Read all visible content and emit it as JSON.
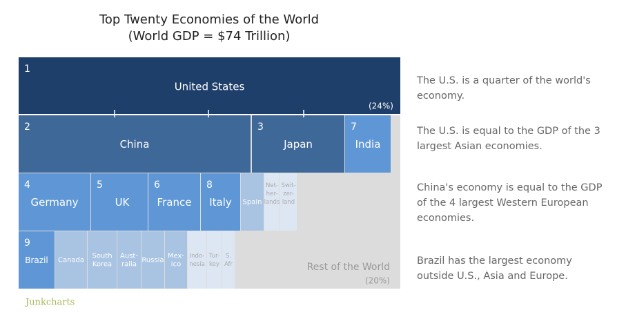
{
  "title": "Top Twenty Economies of the World",
  "subtitle": "(World GDP = $74 Trillion)",
  "blocks": [
    {
      "rank": 1,
      "label": "United States",
      "note": "(24%)"
    },
    {
      "rank": 2,
      "label": "China"
    },
    {
      "rank": 3,
      "label": "Japan"
    },
    {
      "rank": 7,
      "label": "India"
    },
    {
      "rank": 4,
      "label": "Germany"
    },
    {
      "rank": 5,
      "label": "UK"
    },
    {
      "rank": 6,
      "label": "France"
    },
    {
      "rank": 8,
      "label": "Italy"
    },
    {
      "lines": [
        "Spain"
      ]
    },
    {
      "lines": [
        "Net-",
        "her-",
        "lands"
      ]
    },
    {
      "lines": [
        "Swit-",
        "zer-",
        "land"
      ]
    },
    {
      "rank": 9,
      "label": "Brazil"
    },
    {
      "lines": [
        "Canada"
      ]
    },
    {
      "lines": [
        "South",
        "Korea"
      ]
    },
    {
      "lines": [
        "Aust-",
        "ralia"
      ]
    },
    {
      "lines": [
        "Russia"
      ]
    },
    {
      "lines": [
        "Mex-",
        "ico"
      ]
    },
    {
      "lines": [
        "Indo-",
        "nesia"
      ]
    },
    {
      "lines": [
        "Tur-",
        "key"
      ]
    },
    {
      "lines": [
        "S.",
        "Afr"
      ]
    }
  ],
  "rest": {
    "label": "Rest of the World",
    "note": "(20%)"
  },
  "annotations": [
    [
      "The U.S. is a quarter of the world's",
      "economy."
    ],
    [
      "The U.S. is equal to the GDP of the 3",
      "largest Asian economies."
    ],
    [
      "China's economy is equal to the GDP",
      "of the 4 largest Western European",
      "economies."
    ],
    [
      "Brazil has the largest economy",
      "outside U.S., Asia and Europe."
    ]
  ],
  "source": "Junkcharts"
}
